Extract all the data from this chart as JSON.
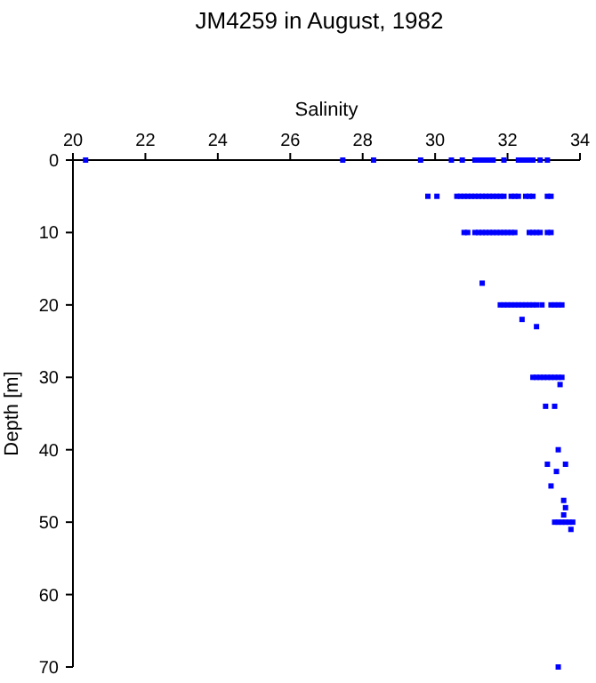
{
  "chart_data": {
    "type": "scatter",
    "title": "JM4259 in August, 1982",
    "xlabel": "Salinity",
    "ylabel": "Depth [m]",
    "xlim": [
      20,
      34
    ],
    "xticks": [
      20,
      22,
      24,
      26,
      28,
      30,
      32,
      34
    ],
    "ylim": [
      70,
      0
    ],
    "yticks": [
      0,
      10,
      20,
      30,
      40,
      50,
      60,
      70
    ],
    "grid": false,
    "marker": "square",
    "series": [
      {
        "color": "#0000ff",
        "x": [
          20.35,
          27.45,
          28.3,
          29.6,
          30.45,
          30.75,
          31.1,
          31.2,
          31.3,
          31.4,
          31.5,
          31.6,
          31.9,
          32.3,
          32.4,
          32.5,
          32.6,
          32.7,
          32.9,
          33.1,
          29.8,
          30.05,
          30.6,
          30.7,
          30.8,
          30.9,
          31.0,
          31.1,
          31.2,
          31.3,
          31.4,
          31.5,
          31.6,
          31.7,
          31.8,
          31.9,
          32.1,
          32.2,
          32.3,
          32.5,
          32.6,
          32.7,
          33.1,
          33.2,
          30.8,
          30.9,
          31.1,
          31.2,
          31.3,
          31.4,
          31.5,
          31.6,
          31.7,
          31.8,
          31.9,
          32.0,
          32.1,
          32.2,
          32.6,
          32.7,
          32.8,
          32.9,
          33.1,
          33.2,
          31.3,
          31.8,
          31.9,
          32.0,
          32.1,
          32.2,
          32.3,
          32.4,
          32.5,
          32.6,
          32.7,
          32.8,
          32.95,
          33.2,
          33.3,
          33.4,
          33.5,
          32.4,
          32.8,
          32.7,
          32.8,
          32.9,
          33.0,
          33.1,
          33.2,
          33.3,
          33.4,
          33.5,
          33.45,
          33.05,
          33.3,
          33.4,
          33.1,
          33.6,
          33.35,
          33.2,
          33.55,
          33.6,
          33.55,
          33.3,
          33.4,
          33.5,
          33.6,
          33.7,
          33.8,
          33.75,
          33.4
        ],
        "values": [
          0,
          0,
          0,
          0,
          0,
          0,
          0,
          0,
          0,
          0,
          0,
          0,
          0,
          0,
          0,
          0,
          0,
          0,
          0,
          0,
          5,
          5,
          5,
          5,
          5,
          5,
          5,
          5,
          5,
          5,
          5,
          5,
          5,
          5,
          5,
          5,
          5,
          5,
          5,
          5,
          5,
          5,
          5,
          5,
          10,
          10,
          10,
          10,
          10,
          10,
          10,
          10,
          10,
          10,
          10,
          10,
          10,
          10,
          10,
          10,
          10,
          10,
          10,
          10,
          17,
          20,
          20,
          20,
          20,
          20,
          20,
          20,
          20,
          20,
          20,
          20,
          20,
          20,
          20,
          20,
          20,
          22,
          23,
          30,
          30,
          30,
          30,
          30,
          30,
          30,
          30,
          30,
          31,
          34,
          34,
          40,
          42,
          42,
          43,
          45,
          47,
          48,
          49,
          50,
          50,
          50,
          50,
          50,
          50,
          51,
          70
        ]
      }
    ]
  }
}
